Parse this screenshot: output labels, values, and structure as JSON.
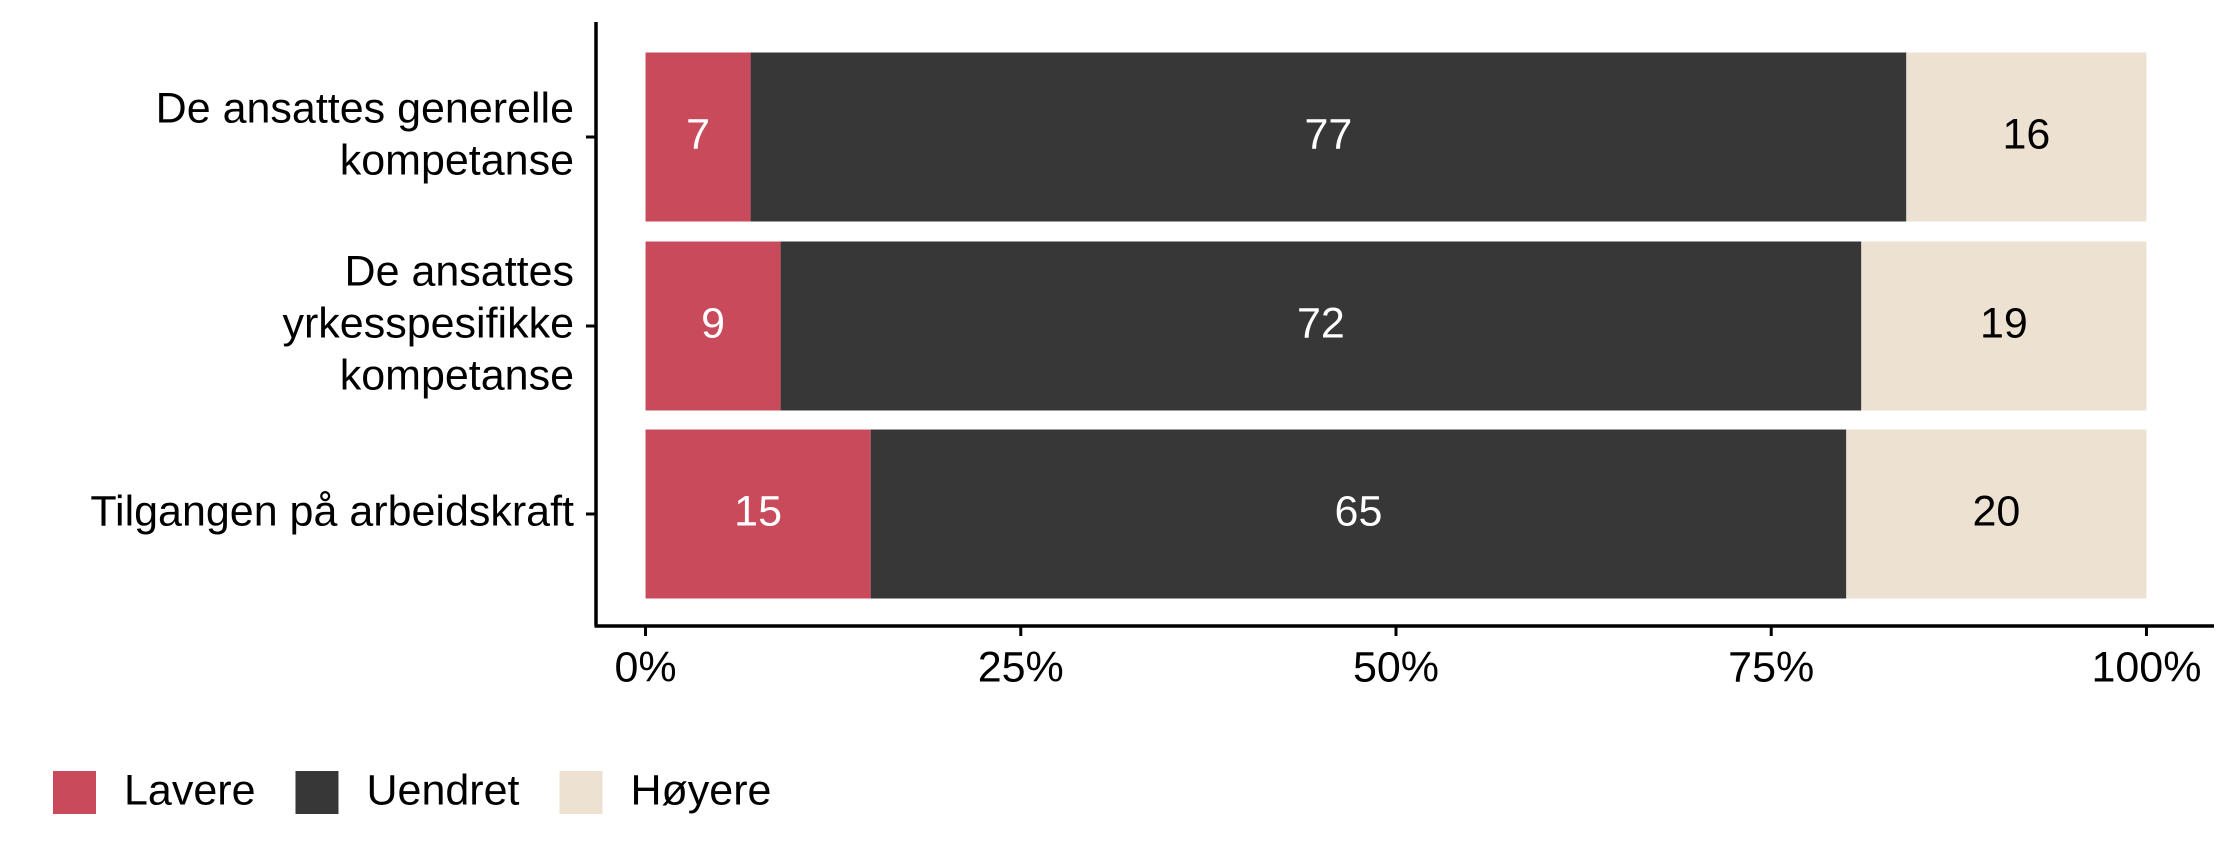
{
  "chart_data": {
    "type": "stacked-bar-horizontal",
    "categories": [
      [
        "De ansattes generelle",
        "kompetanse"
      ],
      [
        "De ansattes",
        "yrkesspesifikke",
        "kompetanse"
      ],
      [
        "Tilgangen på arbeidskraft"
      ]
    ],
    "series": [
      {
        "name": "Lavere",
        "color": "#c94b5b",
        "label_color": "#ffffff",
        "values": [
          7,
          9,
          15
        ]
      },
      {
        "name": "Uendret",
        "color": "#373737",
        "label_color": "#ffffff",
        "values": [
          77,
          72,
          65
        ]
      },
      {
        "name": "Høyere",
        "color": "#ede1d1",
        "label_color": "#000000",
        "values": [
          16,
          19,
          20
        ]
      }
    ],
    "xlim": [
      -3.3,
      104.5
    ],
    "xticks": [
      {
        "value": 0,
        "label": "0%"
      },
      {
        "value": 25,
        "label": "25%"
      },
      {
        "value": 50,
        "label": "50%"
      },
      {
        "value": 75,
        "label": "75%"
      },
      {
        "value": 100,
        "label": "100%"
      }
    ],
    "legend": "bottom-left"
  }
}
